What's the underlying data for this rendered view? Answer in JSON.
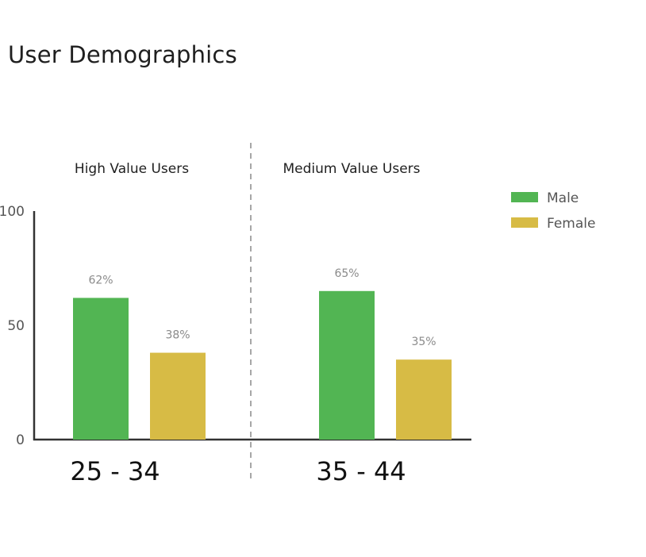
{
  "title": "User Demographics",
  "chart_data": {
    "type": "bar",
    "categories": [
      "25 - 34",
      "35 - 44"
    ],
    "group_titles": [
      "High Value Users",
      "Medium Value Users"
    ],
    "series": [
      {
        "name": "Male",
        "values": [
          62,
          65
        ],
        "labels": [
          "62%",
          "65%"
        ],
        "color": "#52b553"
      },
      {
        "name": "Female",
        "values": [
          38,
          35
        ],
        "labels": [
          "38%",
          "35%"
        ],
        "color": "#d7bb45"
      }
    ],
    "y_ticks": [
      0,
      50,
      100
    ],
    "ylim": [
      0,
      100
    ],
    "grid": false,
    "legend_position": "top-right",
    "divider": "dashed-vertical"
  }
}
